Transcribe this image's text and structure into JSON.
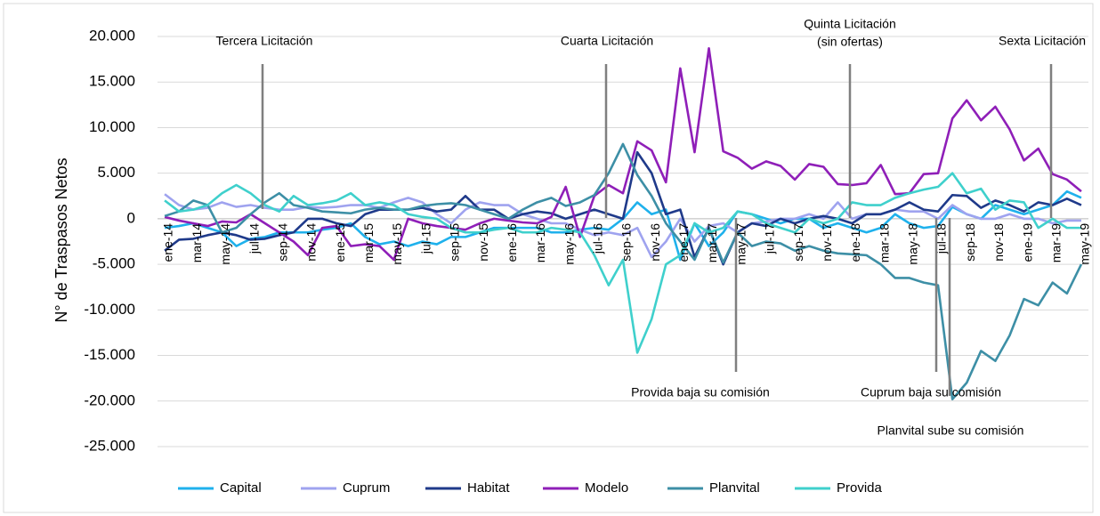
{
  "chart_data": {
    "type": "line",
    "y_label": "N° de Traspasos Netos",
    "categories": [
      "ene-14",
      null,
      "mar-14",
      null,
      "may-14",
      null,
      "jul-14",
      null,
      "sep-14",
      null,
      "nov-14",
      null,
      "ene-15",
      null,
      "mar-15",
      null,
      "may-15",
      null,
      "jul-15",
      null,
      "sep-15",
      null,
      "nov-15",
      null,
      "ene-16",
      null,
      "mar-16",
      null,
      "may-16",
      null,
      "jul-16",
      null,
      "sep-16",
      null,
      "nov-16",
      null,
      "ene-17",
      null,
      "mar-17",
      null,
      "may-17",
      null,
      "jul-17",
      null,
      "sep-17",
      null,
      "nov-17",
      null,
      "ene-18",
      null,
      "mar-18",
      null,
      "may-18",
      null,
      "jul-18",
      null,
      "sep-18",
      null,
      "nov-18",
      null,
      "ene-19",
      null,
      "mar-19",
      null,
      "may-19"
    ],
    "series": [
      {
        "name": "Capital",
        "color": "#1fb1ec",
        "values": [
          -1000,
          -800,
          -500,
          -1000,
          -1500,
          -3000,
          -2200,
          -2000,
          -1500,
          -1500,
          -1500,
          -1200,
          -1000,
          -500,
          -2000,
          -2800,
          -2500,
          -3000,
          -2500,
          -2800,
          -2000,
          -2000,
          -1500,
          -1000,
          -1000,
          -1000,
          -1000,
          -1500,
          -1500,
          -1200,
          -1000,
          -1200,
          0,
          1800,
          500,
          1000,
          -4500,
          -500,
          -3000,
          -1500,
          800,
          500,
          0,
          -500,
          0,
          0,
          -1000,
          -500,
          -1000,
          -1500,
          -1000,
          500,
          -500,
          -1000,
          -800,
          1300,
          500,
          0,
          1500,
          1000,
          500,
          1000,
          1500,
          3000,
          2300
        ]
      },
      {
        "name": "Cuprum",
        "color": "#9fa3ef",
        "values": [
          2700,
          1500,
          1000,
          1200,
          1800,
          1300,
          1500,
          1200,
          1000,
          1000,
          1300,
          1200,
          1300,
          1500,
          1500,
          1200,
          1800,
          2300,
          1800,
          500,
          -500,
          1000,
          1800,
          1500,
          1500,
          500,
          0,
          -500,
          -500,
          -1200,
          -1800,
          -1500,
          -1800,
          -1000,
          -4200,
          -2500,
          0,
          -2500,
          -800,
          -500,
          -1500,
          -500,
          -300,
          0,
          0,
          500,
          0,
          1800,
          0,
          500,
          500,
          1000,
          800,
          800,
          0,
          1500,
          500,
          0,
          0,
          500,
          0,
          0,
          -500,
          -200,
          -200
        ]
      },
      {
        "name": "Habitat",
        "color": "#1f3a8a",
        "values": [
          -3500,
          -2300,
          -2200,
          -1800,
          -1500,
          -1800,
          -2300,
          -2200,
          -1800,
          -1500,
          0,
          0,
          -500,
          -800,
          500,
          1000,
          1000,
          1000,
          1200,
          800,
          1000,
          2500,
          1000,
          1000,
          0,
          500,
          800,
          600,
          0,
          500,
          1000,
          500,
          0,
          7300,
          5000,
          500,
          1000,
          -4200,
          -1000,
          -5000,
          -1500,
          -500,
          -800,
          0,
          -500,
          0,
          300,
          0,
          -500,
          500,
          500,
          1000,
          1800,
          1000,
          800,
          2600,
          2500,
          1200,
          2000,
          1500,
          800,
          1800,
          1500,
          2200,
          1500
        ]
      },
      {
        "name": "Modelo",
        "color": "#8f1fb8",
        "values": [
          200,
          -200,
          -500,
          -800,
          -300,
          -400,
          500,
          -500,
          -1500,
          -2500,
          -4000,
          -1000,
          -800,
          -3000,
          -2800,
          -3000,
          -4500,
          0,
          -500,
          -800,
          -1000,
          -1200,
          -500,
          0,
          -200,
          -400,
          -500,
          200,
          3500,
          -2000,
          2500,
          3700,
          2800,
          8500,
          7500,
          4000,
          16500,
          7300,
          18700,
          7400,
          6700,
          5500,
          6300,
          5800,
          4300,
          6000,
          5700,
          3800,
          3700,
          3900,
          5900,
          2700,
          2800,
          4900,
          5000,
          11000,
          13000,
          10800,
          12300,
          9800,
          6400,
          7700,
          4900,
          4300,
          3000
        ]
      },
      {
        "name": "Planvital",
        "color": "#3d8fa6",
        "values": [
          300,
          800,
          2000,
          1500,
          -1500,
          -1000,
          500,
          1800,
          2800,
          1500,
          1200,
          800,
          700,
          600,
          1000,
          1200,
          1000,
          1000,
          1400,
          1600,
          1700,
          1500,
          1000,
          500,
          0,
          1000,
          1800,
          2300,
          1400,
          1800,
          2600,
          5000,
          8200,
          4800,
          2500,
          -500,
          -2500,
          -4500,
          -1000,
          -4800,
          -1500,
          -3000,
          -2500,
          -2700,
          -3500,
          -3000,
          -3500,
          -3800,
          -3900,
          -4000,
          -5000,
          -6500,
          -6500,
          -7000,
          -7300,
          -19800,
          -18000,
          -14500,
          -15600,
          -12800,
          -8800,
          -9500,
          -7000,
          -8200,
          -5000
        ]
      },
      {
        "name": "Provida",
        "color": "#3fd0cc",
        "values": [
          2000,
          800,
          1000,
          1500,
          2800,
          3700,
          2800,
          1500,
          800,
          2500,
          1500,
          1700,
          2000,
          2800,
          1500,
          1800,
          1500,
          500,
          200,
          0,
          -1000,
          -1500,
          -1500,
          -1200,
          -1000,
          -1500,
          -1500,
          -1000,
          -1200,
          -1500,
          -4000,
          -7300,
          -4500,
          -14700,
          -11000,
          -5000,
          -4000,
          -500,
          -1500,
          -1000,
          800,
          500,
          -500,
          -1000,
          -1500,
          0,
          -500,
          0,
          1800,
          1500,
          1500,
          2300,
          2800,
          3200,
          3500,
          5000,
          2800,
          3300,
          1000,
          2000,
          1800,
          -1000,
          0,
          -1000,
          -1000
        ]
      }
    ],
    "ylim": [
      -25000,
      20000
    ],
    "yticks": [
      {
        "value": -25000,
        "label": "-25.000"
      },
      {
        "value": -20000,
        "label": "-20.000"
      },
      {
        "value": -15000,
        "label": "-15.000"
      },
      {
        "value": -10000,
        "label": "-10.000"
      },
      {
        "value": -5000,
        "label": "-5.000"
      },
      0,
      {
        "value": 5000,
        "label": "5.000"
      },
      {
        "value": 10000,
        "label": "10.000"
      },
      {
        "value": 15000,
        "label": "15.000"
      },
      {
        "value": 20000,
        "label": "20.000"
      }
    ],
    "grid": true,
    "legend": "bottom",
    "annotations": [
      "Tercera Licitación",
      "Cuarta Licitación",
      "Quinta Licitación",
      "(sin ofertas)",
      "Sexta Licitación",
      "Provida baja su comisión",
      "Cuprum baja su comisión",
      "Planvital sube su comisión"
    ]
  }
}
